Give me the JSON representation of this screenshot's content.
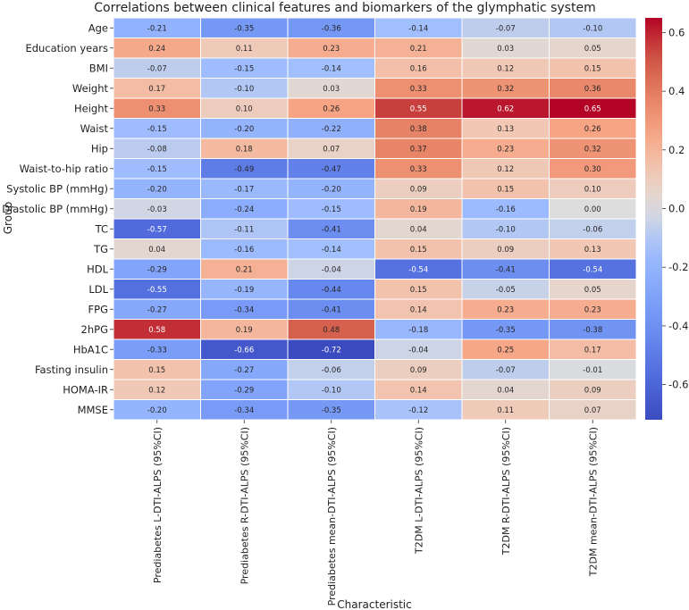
{
  "chart_data": {
    "type": "heatmap",
    "title": "Correlations between clinical features and biomarkers of the glymphatic system",
    "xlabel": "Characteristic",
    "ylabel": "Group",
    "rows": [
      "Age",
      "Education years",
      "BMI",
      "Weight",
      "Height",
      "Waist",
      "Hip",
      "Waist-to-hip ratio",
      "Systolic BP (mmHg)",
      "Diastolic BP (mmHg)",
      "TC",
      "TG",
      "HDL",
      "LDL",
      "FPG",
      "2hPG",
      "HbA1C",
      "Fasting insulin",
      "HOMA-IR",
      "MMSE"
    ],
    "columns": [
      "Prediabetes L-DTI-ALPS (95%CI)",
      "Prediabetes R-DTI-ALPS (95%CI)",
      "Prediabetes mean-DTI-ALPS (95%CI)",
      "T2DM L-DTI-ALPS (95%CI)",
      "T2DM R-DTI-ALPS (95%CI)",
      "T2DM mean-DTI-ALPS (95%CI)"
    ],
    "values": [
      [
        -0.21,
        -0.35,
        -0.36,
        -0.14,
        -0.07,
        -0.1
      ],
      [
        0.24,
        0.11,
        0.23,
        0.21,
        0.03,
        0.05
      ],
      [
        -0.07,
        -0.15,
        -0.14,
        0.16,
        0.12,
        0.15
      ],
      [
        0.17,
        -0.1,
        0.03,
        0.33,
        0.32,
        0.36
      ],
      [
        0.33,
        0.1,
        0.26,
        0.55,
        0.62,
        0.65
      ],
      [
        -0.15,
        -0.2,
        -0.22,
        0.38,
        0.13,
        0.26
      ],
      [
        -0.08,
        0.18,
        0.07,
        0.37,
        0.23,
        0.32
      ],
      [
        -0.15,
        -0.49,
        -0.47,
        0.33,
        0.12,
        0.3
      ],
      [
        -0.2,
        -0.17,
        -0.2,
        0.09,
        0.15,
        0.1
      ],
      [
        -0.03,
        -0.24,
        -0.15,
        0.19,
        -0.16,
        0.0
      ],
      [
        -0.57,
        -0.11,
        -0.41,
        0.04,
        -0.1,
        -0.06
      ],
      [
        0.04,
        -0.16,
        -0.14,
        0.15,
        0.09,
        0.13
      ],
      [
        -0.29,
        0.21,
        -0.04,
        -0.54,
        -0.41,
        -0.54
      ],
      [
        -0.55,
        -0.19,
        -0.44,
        0.15,
        -0.05,
        0.05
      ],
      [
        -0.27,
        -0.34,
        -0.41,
        0.14,
        0.23,
        0.23
      ],
      [
        0.58,
        0.19,
        0.48,
        -0.18,
        -0.35,
        -0.38
      ],
      [
        -0.33,
        -0.66,
        -0.72,
        -0.04,
        0.25,
        0.17
      ],
      [
        0.15,
        -0.27,
        -0.06,
        0.09,
        -0.07,
        -0.01
      ],
      [
        0.12,
        -0.29,
        -0.1,
        0.14,
        0.04,
        0.09
      ],
      [
        -0.2,
        -0.34,
        -0.35,
        -0.12,
        0.11,
        0.07
      ]
    ],
    "color_range": [
      -0.72,
      0.65
    ],
    "colormap": "coolwarm",
    "colorbar_ticks": [
      0.6,
      0.4,
      0.2,
      0.0,
      -0.2,
      -0.4,
      -0.6
    ],
    "colorbar_tick_labels": [
      "0.6",
      "0.4",
      "0.2",
      "0.0",
      "-0.2",
      "-0.4",
      "-0.6"
    ]
  }
}
